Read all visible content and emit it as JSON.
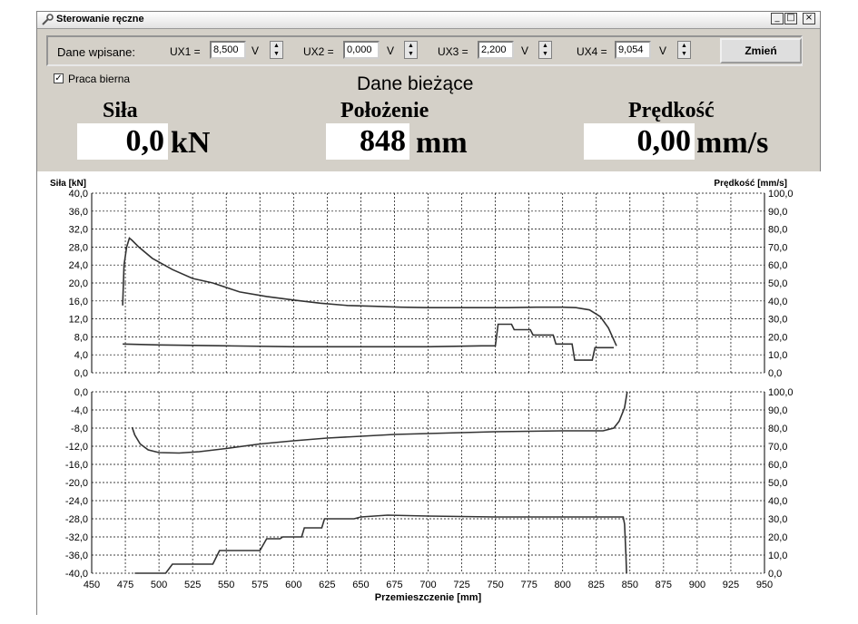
{
  "window": {
    "title": "Sterowanie ręczne",
    "min_glyph": "_",
    "max_glyph": "□",
    "close_glyph": "×"
  },
  "controls": {
    "dane_wpisane_label": "Dane wpisane:",
    "unit": "V",
    "ux": [
      {
        "label": "UX1 =",
        "value": "8,500"
      },
      {
        "label": "UX2 =",
        "value": "0,000"
      },
      {
        "label": "UX3 =",
        "value": "2,200"
      },
      {
        "label": "UX4 =",
        "value": "9,054"
      }
    ],
    "zmien_label": "Zmień"
  },
  "praca_bierna": {
    "label": "Praca bierna",
    "checked": true,
    "check_glyph": "✓"
  },
  "current": {
    "heading": "Dane bieżące",
    "sila": {
      "label": "Siła",
      "value": "0,0",
      "unit": "kN"
    },
    "polozenie": {
      "label": "Położenie",
      "value": "848",
      "unit": "mm"
    },
    "predkosc": {
      "label": "Prędkość",
      "value": "0,00",
      "unit": "mm/s"
    }
  },
  "chart_data": [
    {
      "type": "line",
      "ylabel_left": "Siła [kN]",
      "ylabel_right": "Prędkość [mm/s]",
      "xlim": [
        450,
        950
      ],
      "ylim_left": [
        0,
        40
      ],
      "ylim_right": [
        0,
        100
      ],
      "yticks_left": [
        "40,0",
        "36,0",
        "32,0",
        "28,0",
        "24,0",
        "20,0",
        "16,0",
        "12,0",
        "8,0",
        "4,0",
        "0,0"
      ],
      "yticks_right": [
        "100,0",
        "90,0",
        "80,0",
        "70,0",
        "60,0",
        "50,0",
        "40,0",
        "30,0",
        "20,0",
        "10,0",
        "0,0"
      ],
      "grid": true,
      "series": [
        {
          "axis": "left",
          "points": [
            [
              473,
              15
            ],
            [
              474,
              24
            ],
            [
              476,
              28
            ],
            [
              478,
              30
            ],
            [
              480,
              29.5
            ],
            [
              485,
              28
            ],
            [
              495,
              25.5
            ],
            [
              510,
              23
            ],
            [
              525,
              21
            ],
            [
              540,
              20
            ],
            [
              560,
              18
            ],
            [
              580,
              17
            ],
            [
              600,
              16.2
            ],
            [
              620,
              15.5
            ],
            [
              640,
              15
            ],
            [
              660,
              14.8
            ],
            [
              680,
              14.6
            ],
            [
              700,
              14.5
            ],
            [
              720,
              14.5
            ],
            [
              740,
              14.5
            ],
            [
              760,
              14.5
            ],
            [
              780,
              14.6
            ],
            [
              800,
              14.6
            ],
            [
              810,
              14.5
            ],
            [
              820,
              14
            ],
            [
              828,
              12.5
            ],
            [
              834,
              10
            ],
            [
              840,
              6
            ]
          ]
        },
        {
          "axis": "right",
          "points": [
            [
              473,
              16
            ],
            [
              500,
              15.5
            ],
            [
              550,
              15
            ],
            [
              600,
              14.5
            ],
            [
              650,
              14.5
            ],
            [
              700,
              14.5
            ],
            [
              740,
              15
            ],
            [
              750,
              15
            ],
            [
              752,
              27
            ],
            [
              762,
              27
            ],
            [
              764,
              24
            ],
            [
              776,
              24
            ],
            [
              778,
              21
            ],
            [
              793,
              21
            ],
            [
              795,
              16
            ],
            [
              807,
              16
            ],
            [
              809,
              7
            ],
            [
              822,
              7
            ],
            [
              824,
              14
            ],
            [
              838,
              14
            ]
          ]
        }
      ]
    },
    {
      "type": "line",
      "xlabel": "Przemieszczenie [mm]",
      "xlim": [
        450,
        950
      ],
      "ylim_left": [
        -40,
        0
      ],
      "ylim_right": [
        0,
        100
      ],
      "xticks": [
        "450",
        "475",
        "500",
        "525",
        "550",
        "575",
        "600",
        "625",
        "650",
        "675",
        "700",
        "725",
        "750",
        "775",
        "800",
        "825",
        "850",
        "875",
        "900",
        "925",
        "950"
      ],
      "yticks_left": [
        "0,0",
        "-4,0",
        "-8,0",
        "-12,0",
        "-16,0",
        "-20,0",
        "-24,0",
        "-28,0",
        "-32,0",
        "-36,0",
        "-40,0"
      ],
      "yticks_right": [
        "100,0",
        "90,0",
        "80,0",
        "70,0",
        "60,0",
        "50,0",
        "40,0",
        "30,0",
        "20,0",
        "10,0",
        "0,0"
      ],
      "grid": true,
      "series": [
        {
          "axis": "left",
          "points": [
            [
              480,
              -7.8
            ],
            [
              482,
              -9.5
            ],
            [
              486,
              -11.5
            ],
            [
              492,
              -12.8
            ],
            [
              500,
              -13.4
            ],
            [
              515,
              -13.5
            ],
            [
              530,
              -13.2
            ],
            [
              550,
              -12.5
            ],
            [
              575,
              -11.5
            ],
            [
              600,
              -10.8
            ],
            [
              625,
              -10.2
            ],
            [
              650,
              -9.8
            ],
            [
              675,
              -9.4
            ],
            [
              700,
              -9.2
            ],
            [
              725,
              -9
            ],
            [
              750,
              -8.8
            ],
            [
              775,
              -8.7
            ],
            [
              800,
              -8.6
            ],
            [
              830,
              -8.6
            ],
            [
              838,
              -8
            ],
            [
              842,
              -6.5
            ],
            [
              846,
              -3.5
            ],
            [
              848,
              0
            ]
          ]
        },
        {
          "axis": "right",
          "points": [
            [
              482,
              0
            ],
            [
              505,
              0
            ],
            [
              510,
              5
            ],
            [
              540,
              5
            ],
            [
              545,
              12.5
            ],
            [
              575,
              12.5
            ],
            [
              580,
              19
            ],
            [
              590,
              19
            ],
            [
              592,
              20
            ],
            [
              606,
              20
            ],
            [
              608,
              25
            ],
            [
              621,
              25
            ],
            [
              623,
              30
            ],
            [
              645,
              30
            ],
            [
              650,
              31
            ],
            [
              670,
              32
            ],
            [
              700,
              31.5
            ],
            [
              750,
              31
            ],
            [
              800,
              31
            ],
            [
              845,
              31
            ],
            [
              846,
              27
            ],
            [
              847,
              10
            ],
            [
              847.5,
              0
            ]
          ]
        }
      ]
    }
  ]
}
